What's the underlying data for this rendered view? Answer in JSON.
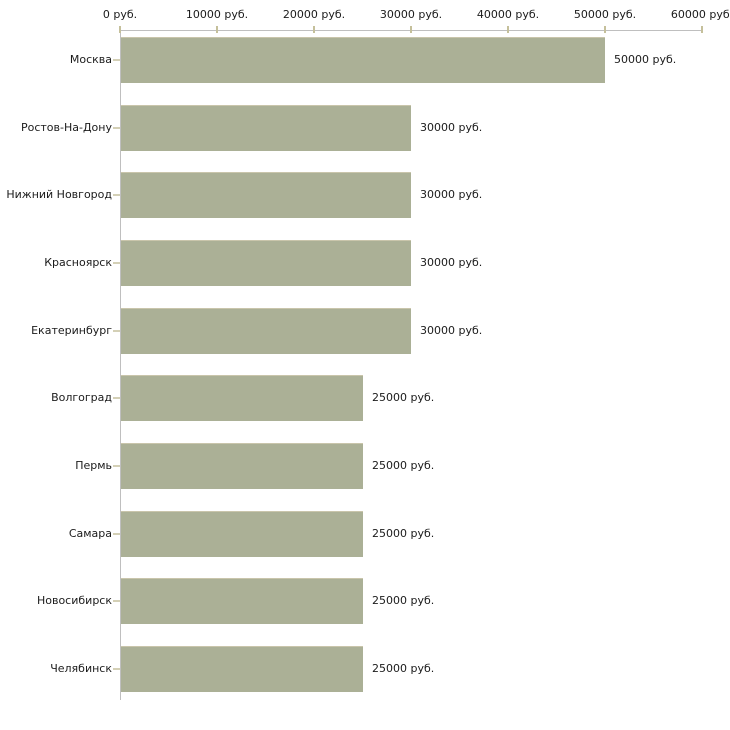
{
  "chart_data": {
    "type": "bar",
    "orientation": "horizontal",
    "unit": "руб.",
    "categories": [
      "Москва",
      "Ростов-На-Дону",
      "Нижний Новгород",
      "Красноярск",
      "Екатеринбург",
      "Волгоград",
      "Пермь",
      "Самара",
      "Новосибирск",
      "Челябинск"
    ],
    "values": [
      50000,
      30000,
      30000,
      30000,
      30000,
      25000,
      25000,
      25000,
      25000,
      25000
    ],
    "value_labels": [
      "50000 руб.",
      "30000 руб.",
      "30000 руб.",
      "30000 руб.",
      "30000 руб.",
      "25000 руб.",
      "25000 руб.",
      "25000 руб.",
      "25000 руб.",
      "25000 руб."
    ],
    "x_axis": {
      "position": "top",
      "range": [
        0,
        60000
      ],
      "ticks": [
        {
          "value": 0,
          "label": "0 руб."
        },
        {
          "value": 10000,
          "label": "10000 руб."
        },
        {
          "value": 20000,
          "label": "20000 руб."
        },
        {
          "value": 30000,
          "label": "30000 руб."
        },
        {
          "value": 40000,
          "label": "40000 руб."
        },
        {
          "value": 50000,
          "label": "50000 руб."
        },
        {
          "value": 60000,
          "label": "60000 руб."
        }
      ]
    },
    "grid": false,
    "legend": false,
    "colors": {
      "bar": "#abb096",
      "bar_top_edge": "#c9c5ab",
      "axis_line": "#bfbfbf",
      "x_tick_mark": "#c5c09b",
      "category_tick_mark": "#d4d0b6",
      "text": "#1b1b1b",
      "background": "#ffffff"
    }
  }
}
